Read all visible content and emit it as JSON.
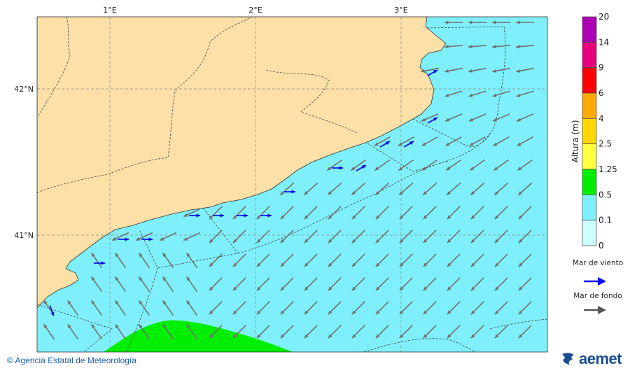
{
  "map": {
    "lon_labels": [
      "1°E",
      "2°E",
      "3°E"
    ],
    "lat_labels": [
      "42°N",
      "41°N"
    ],
    "colors": {
      "land": "#fde0a8",
      "sea": "#7ff0fb",
      "green_zone": "#00ee00",
      "swell_arrow": "#707070",
      "wind_arrow": "#0000ee"
    }
  },
  "legend": {
    "title": "Altura (m)",
    "ticks": [
      "20",
      "14",
      "9",
      "6",
      "4",
      "2.5",
      "1.25",
      "0.5",
      "0.1",
      "0"
    ],
    "colors": [
      "#ab00b4",
      "#e8007e",
      "#ff0000",
      "#ffaa00",
      "#ffd700",
      "#ffff40",
      "#00ee00",
      "#7ff0fb",
      "#ccffff"
    ],
    "wind_sea_label": "Mar de viento",
    "swell_label": "Mar de fondo"
  },
  "footer": {
    "credit": "© Agencia Estatal de Meteorología",
    "logo": "aemet"
  }
}
